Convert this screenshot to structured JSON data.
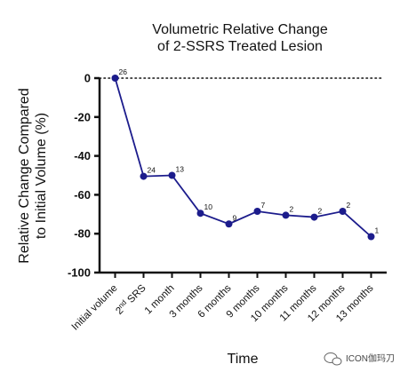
{
  "chart_data": {
    "type": "line",
    "title_lines": [
      "Volumetric Relative Change",
      "of 2-SSRS Treated Lesion"
    ],
    "xlabel": "Time",
    "ylabel_lines": [
      "Relative Change Compared",
      "to Initial Volume (%)"
    ],
    "ylim": [
      -100,
      0
    ],
    "yticks": [
      0,
      -20,
      -40,
      -60,
      -80,
      -100
    ],
    "grid": false,
    "reference_line": {
      "y": 0,
      "style": "dotted"
    },
    "categories": [
      "Initial volume",
      "2nd SRS",
      "1 month",
      "3 months",
      "6 months",
      "9 months",
      "10 months",
      "11 months",
      "12 months",
      "13 months"
    ],
    "series": [
      {
        "values": [
          0,
          -50.5,
          -50,
          -69.5,
          -75,
          -68.5,
          -70.5,
          -71.5,
          -68.5,
          -81.5
        ],
        "point_labels": [
          "26",
          "24",
          "13",
          "10",
          "9",
          "7",
          "2",
          "2",
          "2",
          "1"
        ]
      }
    ],
    "colors": {
      "series": "#1c1c8c",
      "axis": "#111111",
      "text": "#111111"
    }
  },
  "watermark": {
    "text": "ICON伽玛刀",
    "icon": "chat-bubble-icon"
  }
}
